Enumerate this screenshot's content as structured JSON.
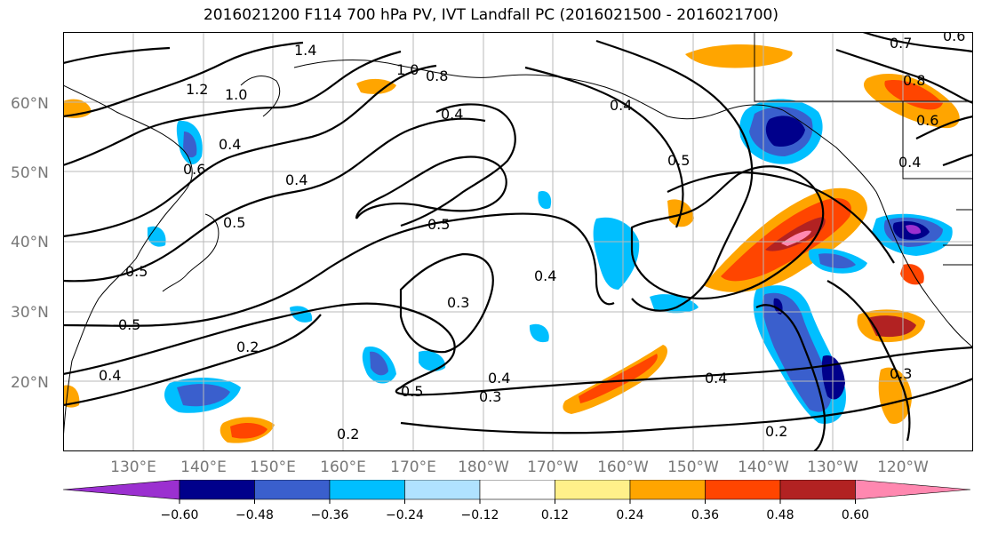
{
  "title": "2016021200 F114 700 hPa PV, IVT Landfall PC (2016021500 - 2016021700)",
  "map": {
    "lon_range": [
      120,
      250
    ],
    "lat_range": [
      10,
      70
    ],
    "lat_labels": [
      "20°N",
      "30°N",
      "40°N",
      "50°N",
      "60°N"
    ],
    "lat_values": [
      20,
      30,
      40,
      50,
      60
    ],
    "lon_labels": [
      "130°E",
      "140°E",
      "150°E",
      "160°E",
      "170°E",
      "180°W",
      "170°W",
      "160°W",
      "150°W",
      "140°W",
      "130°W",
      "120°W"
    ],
    "lon_values": [
      130,
      140,
      150,
      160,
      170,
      180,
      190,
      200,
      210,
      220,
      230,
      240
    ],
    "contour_labels": [
      "1.4",
      "1.0",
      "1.0",
      "1.2",
      "0.8",
      "0.4",
      "0.5",
      "0.4",
      "0.6",
      "0.5",
      "0.4",
      "0.5",
      "0.5",
      "0.4",
      "0.3",
      "0.2",
      "0.4",
      "0.5",
      "0.4",
      "0.3",
      "0.4",
      "0.2",
      "0.2",
      "0.4",
      "0.8",
      "0.6",
      "0.7",
      "0.6",
      "0.4",
      "0.5",
      "0.3"
    ]
  },
  "colorbar": {
    "ticks": [
      "−0.60",
      "−0.48",
      "−0.36",
      "−0.24",
      "−0.12",
      "0.12",
      "0.24",
      "0.36",
      "0.48",
      "0.60"
    ],
    "colors": [
      "#9b30d0",
      "#00008b",
      "#3a5fcd",
      "#00bfff",
      "#b0e2ff",
      "#ffffff",
      "#fff08a",
      "#ffa500",
      "#ff4500",
      "#b22222",
      "#ff88b0"
    ]
  }
}
